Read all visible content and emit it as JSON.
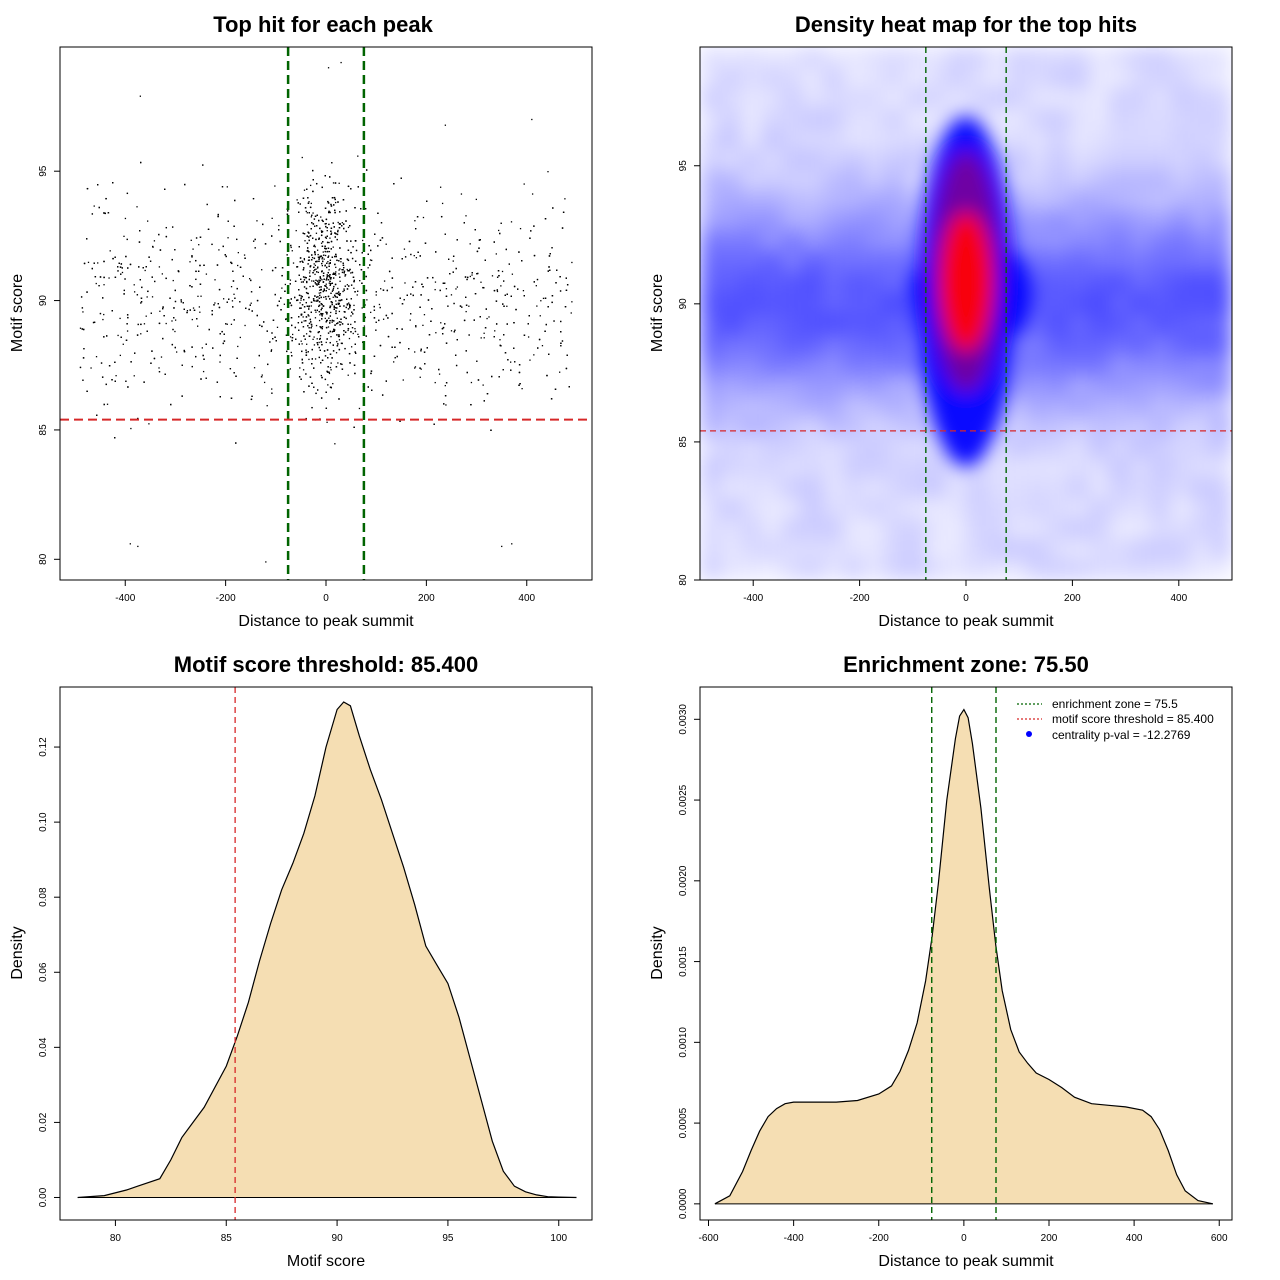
{
  "colors": {
    "points": "#000000",
    "enrichment_line": "#006400",
    "threshold_line": "#d62728",
    "density_fill": "#f5deb3",
    "heat_low": "#ffffff",
    "heat_mid": "#0000ff",
    "heat_high": "#ff0000"
  },
  "chart_data": [
    {
      "id": "scatter",
      "type": "scatter",
      "title": "Top hit for each peak",
      "xlabel": "Distance to peak summit",
      "ylabel": "Motif score",
      "xlim": [
        -530,
        530
      ],
      "ylim": [
        79.2,
        99.8
      ],
      "xticks": [
        -400,
        -200,
        0,
        200,
        400
      ],
      "yticks": [
        80,
        85,
        90,
        95
      ],
      "vlines": [
        -75.5,
        75.5
      ],
      "hline": 85.4,
      "n_points": 3300,
      "outliers": [
        {
          "x": -370,
          "y": 97.9
        },
        {
          "x": 30,
          "y": 99.2
        },
        {
          "x": 5,
          "y": 99.0
        },
        {
          "x": -390,
          "y": 80.6
        },
        {
          "x": -375,
          "y": 80.5
        },
        {
          "x": 350,
          "y": 80.5
        },
        {
          "x": 370,
          "y": 80.6
        },
        {
          "x": -120,
          "y": 79.9
        },
        {
          "x": 410,
          "y": 97.0
        }
      ]
    },
    {
      "id": "heatmap",
      "type": "heatmap",
      "title": "Density heat map for the top hits",
      "xlabel": "Distance to peak summit",
      "ylabel": "Motif score",
      "xlim": [
        -500,
        500
      ],
      "ylim": [
        80,
        99.3
      ],
      "xticks": [
        -400,
        -200,
        0,
        200,
        400
      ],
      "yticks": [
        80,
        85,
        90,
        95
      ],
      "vlines": [
        -75.5,
        75.5
      ],
      "hline": 85.4,
      "hotspot": {
        "x": 0,
        "y": 90.8
      }
    },
    {
      "id": "score-density",
      "type": "area",
      "title": "Motif score threshold: 85.400",
      "xlabel": "Motif score",
      "ylabel": "Density",
      "xlim": [
        77.5,
        101.5
      ],
      "ylim": [
        -0.006,
        0.136
      ],
      "xticks": [
        80,
        85,
        90,
        95,
        100
      ],
      "yticks": [
        0.0,
        0.02,
        0.04,
        0.06,
        0.08,
        0.1,
        0.12
      ],
      "ytick_labels": [
        "0.00",
        "0.02",
        "0.04",
        "0.06",
        "0.08",
        "0.10",
        "0.12"
      ],
      "vline": 85.4,
      "x": [
        78.3,
        79.5,
        80.5,
        81.0,
        82.0,
        82.5,
        83.0,
        83.5,
        84.0,
        85.0,
        85.5,
        86.0,
        86.5,
        87.0,
        87.5,
        88.0,
        88.5,
        89.0,
        89.5,
        90.0,
        90.3,
        90.6,
        91.0,
        91.5,
        92.0,
        92.5,
        93.0,
        93.5,
        94.0,
        94.5,
        95.0,
        95.5,
        96.0,
        96.5,
        97.0,
        97.5,
        98.0,
        98.5,
        99.0,
        99.5,
        100.0,
        100.8
      ],
      "y": [
        0.0,
        0.0005,
        0.002,
        0.003,
        0.005,
        0.01,
        0.016,
        0.02,
        0.024,
        0.035,
        0.043,
        0.052,
        0.063,
        0.073,
        0.082,
        0.089,
        0.097,
        0.107,
        0.12,
        0.13,
        0.132,
        0.131,
        0.123,
        0.114,
        0.106,
        0.097,
        0.088,
        0.078,
        0.067,
        0.062,
        0.057,
        0.048,
        0.037,
        0.026,
        0.015,
        0.007,
        0.003,
        0.0015,
        0.0007,
        0.0002,
        0.0001,
        0.0
      ]
    },
    {
      "id": "distance-density",
      "type": "area",
      "title": "Enrichment zone: 75.50",
      "xlabel": "Distance to peak summit",
      "ylabel": "Density",
      "xlim": [
        -620,
        630
      ],
      "ylim": [
        -0.0001,
        0.0032
      ],
      "xticks": [
        -600,
        -400,
        -200,
        0,
        200,
        400,
        600
      ],
      "yticks": [
        0.0,
        0.0005,
        0.001,
        0.0015,
        0.002,
        0.0025,
        0.003
      ],
      "ytick_labels": [
        "0.0000",
        "0.0005",
        "0.0010",
        "0.0015",
        "0.0020",
        "0.0025",
        "0.0030"
      ],
      "vlines": [
        -75.5,
        75.5
      ],
      "x": [
        -585,
        -550,
        -520,
        -500,
        -480,
        -460,
        -440,
        -420,
        -400,
        -370,
        -340,
        -300,
        -250,
        -200,
        -170,
        -150,
        -130,
        -110,
        -90,
        -75,
        -60,
        -40,
        -20,
        -10,
        0,
        10,
        20,
        40,
        60,
        75,
        90,
        110,
        130,
        150,
        170,
        200,
        230,
        260,
        300,
        340,
        380,
        420,
        440,
        460,
        480,
        500,
        520,
        550,
        585
      ],
      "y": [
        0.0,
        5e-05,
        0.0002,
        0.00033,
        0.00045,
        0.00054,
        0.00059,
        0.00062,
        0.00063,
        0.00063,
        0.00063,
        0.00063,
        0.00064,
        0.00068,
        0.00073,
        0.00082,
        0.00095,
        0.00112,
        0.00138,
        0.00165,
        0.00198,
        0.0025,
        0.00288,
        0.00302,
        0.00306,
        0.00301,
        0.00285,
        0.00245,
        0.00195,
        0.0016,
        0.00132,
        0.00108,
        0.00094,
        0.00087,
        0.00081,
        0.00077,
        0.00072,
        0.00066,
        0.00062,
        0.00061,
        0.0006,
        0.00058,
        0.00054,
        0.00046,
        0.00033,
        0.00018,
        8e-05,
        2e-05,
        0.0
      ],
      "legend": [
        {
          "label": "enrichment zone = 75.5",
          "kind": "dotted",
          "color": "#006400"
        },
        {
          "label": "motif score threshold = 85.400",
          "kind": "dotted",
          "color": "#d62728"
        },
        {
          "label": "centrality p-val = -12.2769",
          "kind": "point",
          "color": "#0000ff"
        }
      ]
    }
  ]
}
